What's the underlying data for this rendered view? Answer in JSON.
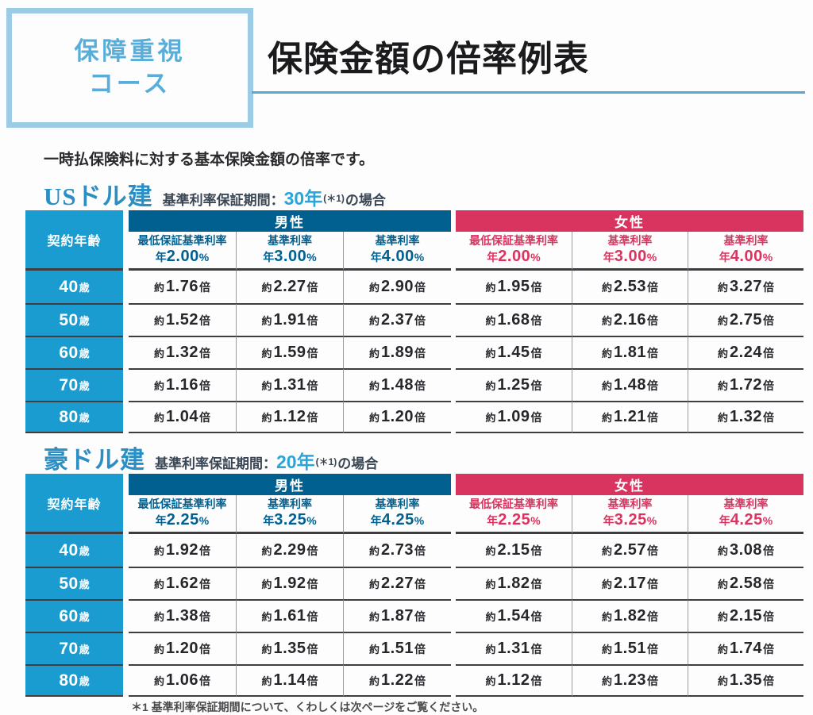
{
  "header": {
    "badge_line1": "保障重視",
    "badge_line2": "コース",
    "title": "保険金額の倍率例表"
  },
  "intro": {
    "text": "一時払保険料に対する基本保険金額の倍率です。"
  },
  "units": {
    "value_prefix": "約",
    "value_suffix": "倍",
    "rate_prefix": "年",
    "rate_suffix": "%",
    "age_suffix": "歳"
  },
  "colors": {
    "badge_border": "#9ccbe5",
    "badge_text": "#58aed9",
    "accent_rule": "#57a8ce",
    "currency_title": "#2c8fc3",
    "period_value": "#2aa5da",
    "age_column": "#1b9cd1",
    "male_band": "#01608f",
    "female_band": "#d9345f",
    "row_line": "#3e3e40"
  },
  "tables": [
    {
      "currency": "USドル建",
      "period_label": "基準利率保証期間：",
      "period_value": "30年",
      "period_note": "(＊1)",
      "period_suffix": "の場合",
      "age_header": "契約年齢",
      "male_header": "男性",
      "female_header": "女性",
      "male_columns": [
        {
          "title": "最低保証基準利率",
          "rate": "2.00"
        },
        {
          "title": "基準利率",
          "rate": "3.00"
        },
        {
          "title": "基準利率",
          "rate": "4.00"
        }
      ],
      "female_columns": [
        {
          "title": "最低保証基準利率",
          "rate": "2.00"
        },
        {
          "title": "基準利率",
          "rate": "3.00"
        },
        {
          "title": "基準利率",
          "rate": "4.00"
        }
      ],
      "rows": [
        {
          "age": "40",
          "male": [
            "1.76",
            "2.27",
            "2.90"
          ],
          "female": [
            "1.95",
            "2.53",
            "3.27"
          ]
        },
        {
          "age": "50",
          "male": [
            "1.52",
            "1.91",
            "2.37"
          ],
          "female": [
            "1.68",
            "2.16",
            "2.75"
          ]
        },
        {
          "age": "60",
          "male": [
            "1.32",
            "1.59",
            "1.89"
          ],
          "female": [
            "1.45",
            "1.81",
            "2.24"
          ]
        },
        {
          "age": "70",
          "male": [
            "1.16",
            "1.31",
            "1.48"
          ],
          "female": [
            "1.25",
            "1.48",
            "1.72"
          ]
        },
        {
          "age": "80",
          "male": [
            "1.04",
            "1.12",
            "1.20"
          ],
          "female": [
            "1.09",
            "1.21",
            "1.32"
          ]
        }
      ]
    },
    {
      "currency": "豪ドル建",
      "period_label": "基準利率保証期間：",
      "period_value": "20年",
      "period_note": "(＊1)",
      "period_suffix": "の場合",
      "age_header": "契約年齢",
      "male_header": "男性",
      "female_header": "女性",
      "male_columns": [
        {
          "title": "最低保証基準利率",
          "rate": "2.25"
        },
        {
          "title": "基準利率",
          "rate": "3.25"
        },
        {
          "title": "基準利率",
          "rate": "4.25"
        }
      ],
      "female_columns": [
        {
          "title": "最低保証基準利率",
          "rate": "2.25"
        },
        {
          "title": "基準利率",
          "rate": "3.25"
        },
        {
          "title": "基準利率",
          "rate": "4.25"
        }
      ],
      "rows": [
        {
          "age": "40",
          "male": [
            "1.92",
            "2.29",
            "2.73"
          ],
          "female": [
            "2.15",
            "2.57",
            "3.08"
          ]
        },
        {
          "age": "50",
          "male": [
            "1.62",
            "1.92",
            "2.27"
          ],
          "female": [
            "1.82",
            "2.17",
            "2.58"
          ]
        },
        {
          "age": "60",
          "male": [
            "1.38",
            "1.61",
            "1.87"
          ],
          "female": [
            "1.54",
            "1.82",
            "2.15"
          ]
        },
        {
          "age": "70",
          "male": [
            "1.20",
            "1.35",
            "1.51"
          ],
          "female": [
            "1.31",
            "1.51",
            "1.74"
          ]
        },
        {
          "age": "80",
          "male": [
            "1.06",
            "1.14",
            "1.22"
          ],
          "female": [
            "1.12",
            "1.23",
            "1.35"
          ]
        }
      ]
    }
  ],
  "footnote": {
    "text": "＊1 基準利率保証期間について、くわしくは次ページをご覧ください。"
  }
}
